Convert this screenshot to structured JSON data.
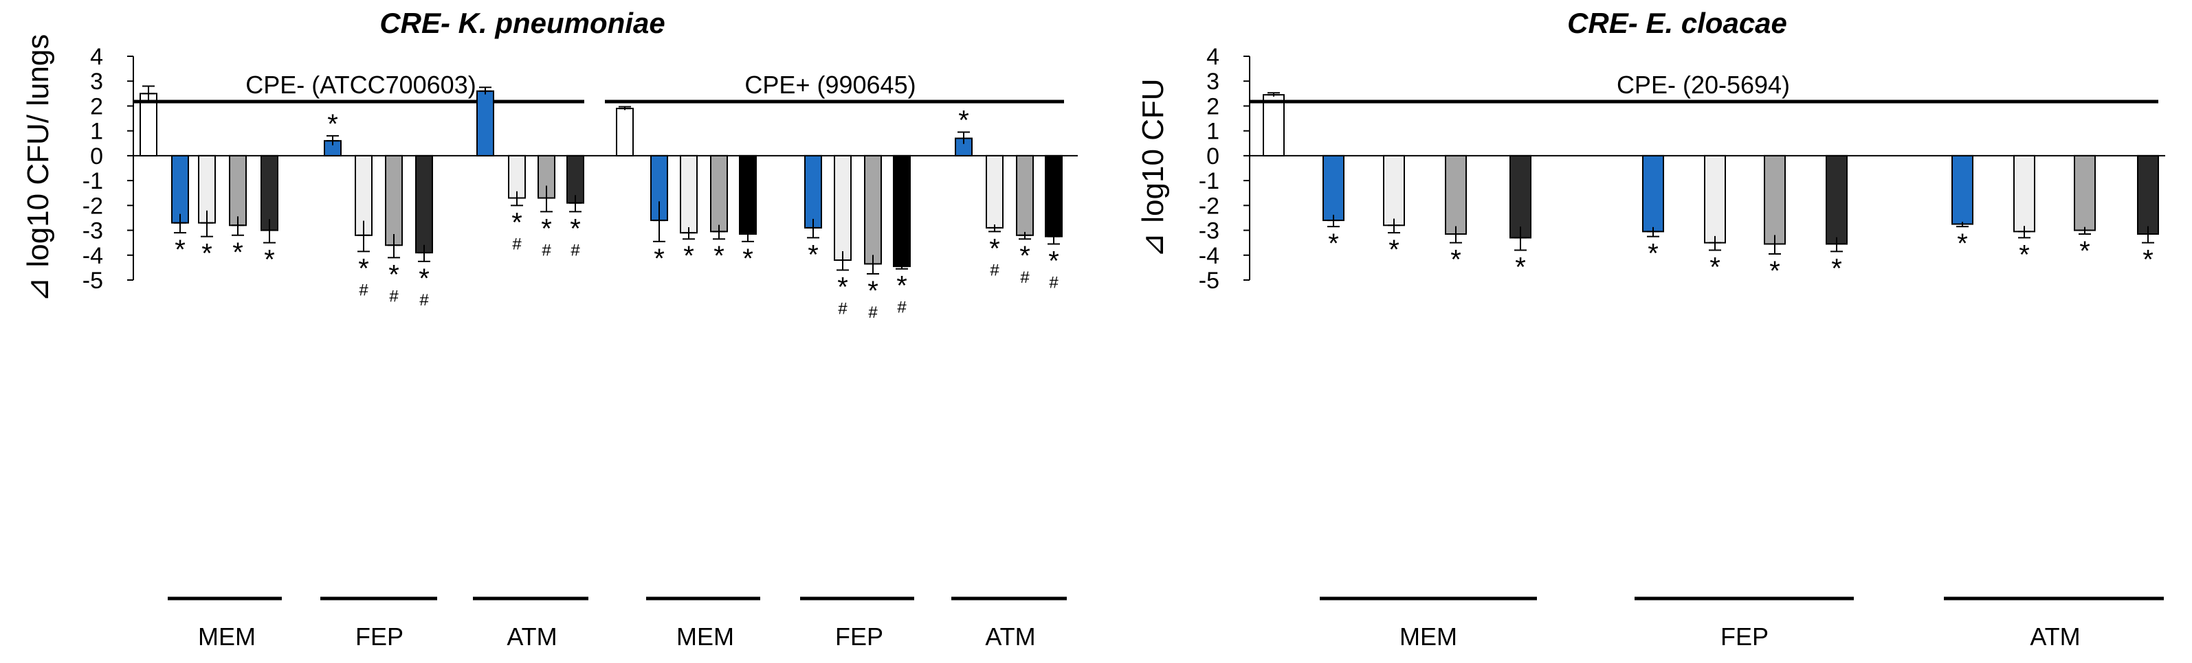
{
  "chart_data": [
    {
      "type": "bar",
      "title": "CRE- K. pneumoniae",
      "ylabel_symbol": "⊿",
      "ylabel": "log10 CFU/ lungs",
      "ylim": [
        -5,
        4
      ],
      "yticks": [
        4,
        3,
        2,
        1,
        0,
        -1,
        -2,
        -3,
        -4,
        -5
      ],
      "strains": [
        {
          "label": "CPE- (ATCC700603)",
          "untreated": {
            "value": 2.5,
            "error": 0.3,
            "color": "#ffffff"
          }
        },
        {
          "label": "CPE+ (990645)",
          "untreated": {
            "value": 1.9,
            "error": 0.07,
            "color": "#ffffff"
          }
        }
      ],
      "drug_groups": [
        {
          "label": "MEM",
          "strain": 0,
          "bars": [
            {
              "value": -2.7,
              "error": 0.4,
              "color": "#1f6fc5",
              "mark": "*"
            },
            {
              "value": -2.7,
              "error": 0.55,
              "color": "#eeeeee",
              "mark": "*"
            },
            {
              "value": -2.8,
              "error": 0.4,
              "color": "#a6a6a6",
              "mark": "*"
            },
            {
              "value": -3.0,
              "error": 0.5,
              "color": "#2b2b2b",
              "mark": "*"
            }
          ]
        },
        {
          "label": "FEP",
          "strain": 0,
          "bars": [
            {
              "value": 0.6,
              "error": 0.2,
              "color": "#1f6fc5",
              "mark": "*",
              "above": true
            },
            {
              "value": -3.2,
              "error": 0.65,
              "color": "#eeeeee",
              "mark": "*#"
            },
            {
              "value": -3.6,
              "error": 0.5,
              "color": "#a6a6a6",
              "mark": "*#"
            },
            {
              "value": -3.9,
              "error": 0.35,
              "color": "#2b2b2b",
              "mark": "*#"
            }
          ]
        },
        {
          "label": "ATM",
          "strain": 0,
          "bars": [
            {
              "value": 2.6,
              "error": 0.15,
              "color": "#1f6fc5",
              "mark": ""
            },
            {
              "value": -1.7,
              "error": 0.3,
              "color": "#eeeeee",
              "mark": "*#"
            },
            {
              "value": -1.7,
              "error": 0.55,
              "color": "#a6a6a6",
              "mark": "*#"
            },
            {
              "value": -1.9,
              "error": 0.35,
              "color": "#2b2b2b",
              "mark": "*#"
            }
          ]
        },
        {
          "label": "MEM",
          "strain": 1,
          "bars": [
            {
              "value": -2.6,
              "error": 0.85,
              "color": "#1f6fc5",
              "mark": "*"
            },
            {
              "value": -3.1,
              "error": 0.25,
              "color": "#eeeeee",
              "mark": "*"
            },
            {
              "value": -3.05,
              "error": 0.3,
              "color": "#a6a6a6",
              "mark": "*"
            },
            {
              "value": -3.15,
              "error": 0.3,
              "color": "#000000",
              "mark": "*"
            }
          ]
        },
        {
          "label": "FEP",
          "strain": 1,
          "bars": [
            {
              "value": -2.9,
              "error": 0.4,
              "color": "#1f6fc5",
              "mark": "*"
            },
            {
              "value": -4.2,
              "error": 0.4,
              "color": "#eeeeee",
              "mark": "*#"
            },
            {
              "value": -4.35,
              "error": 0.4,
              "color": "#a6a6a6",
              "mark": "*#"
            },
            {
              "value": -4.45,
              "error": 0.1,
              "color": "#000000",
              "mark": "*#"
            }
          ]
        },
        {
          "label": "ATM",
          "strain": 1,
          "bars": [
            {
              "value": 0.7,
              "error": 0.25,
              "color": "#1f6fc5",
              "mark": "*",
              "above": true
            },
            {
              "value": -2.9,
              "error": 0.15,
              "color": "#eeeeee",
              "mark": "*#"
            },
            {
              "value": -3.2,
              "error": 0.15,
              "color": "#a6a6a6",
              "mark": "*#"
            },
            {
              "value": -3.25,
              "error": 0.3,
              "color": "#000000",
              "mark": "*#"
            }
          ]
        }
      ]
    },
    {
      "type": "bar",
      "title": "CRE- E. cloacae",
      "ylabel_symbol": "⊿",
      "ylabel": "log10 CFU",
      "ylim": [
        -5,
        4
      ],
      "yticks": [
        4,
        3,
        2,
        1,
        0,
        -1,
        -2,
        -3,
        -4,
        -5
      ],
      "strains": [
        {
          "label": "CPE- (20-5694)",
          "untreated": {
            "value": 2.45,
            "error": 0.08,
            "color": "#ffffff"
          }
        }
      ],
      "drug_groups": [
        {
          "label": "MEM",
          "strain": 0,
          "bars": [
            {
              "value": -2.6,
              "error": 0.25,
              "color": "#1f6fc5",
              "mark": "*"
            },
            {
              "value": -2.8,
              "error": 0.3,
              "color": "#eeeeee",
              "mark": "*"
            },
            {
              "value": -3.15,
              "error": 0.35,
              "color": "#a6a6a6",
              "mark": "*"
            },
            {
              "value": -3.3,
              "error": 0.5,
              "color": "#2b2b2b",
              "mark": "*"
            }
          ]
        },
        {
          "label": "FEP",
          "strain": 0,
          "bars": [
            {
              "value": -3.05,
              "error": 0.2,
              "color": "#1f6fc5",
              "mark": "*"
            },
            {
              "value": -3.5,
              "error": 0.3,
              "color": "#eeeeee",
              "mark": "*"
            },
            {
              "value": -3.55,
              "error": 0.4,
              "color": "#a6a6a6",
              "mark": "*"
            },
            {
              "value": -3.55,
              "error": 0.3,
              "color": "#2b2b2b",
              "mark": "*"
            }
          ]
        },
        {
          "label": "ATM",
          "strain": 0,
          "bars": [
            {
              "value": -2.75,
              "error": 0.1,
              "color": "#1f6fc5",
              "mark": "*"
            },
            {
              "value": -3.05,
              "error": 0.25,
              "color": "#eeeeee",
              "mark": "*"
            },
            {
              "value": -3.0,
              "error": 0.15,
              "color": "#a6a6a6",
              "mark": "*"
            },
            {
              "value": -3.15,
              "error": 0.35,
              "color": "#2b2b2b",
              "mark": "*"
            }
          ]
        }
      ]
    }
  ]
}
